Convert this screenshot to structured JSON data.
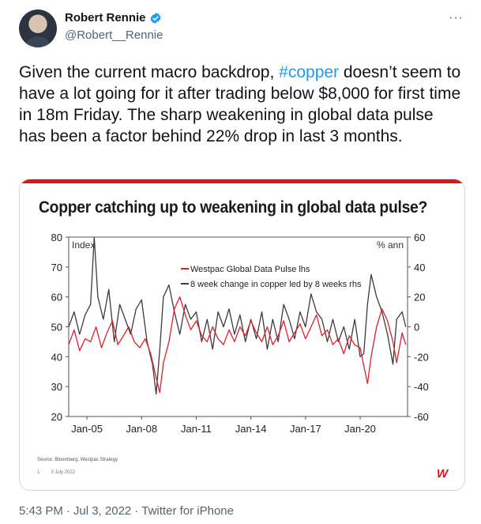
{
  "author": {
    "display_name": "Robert Rennie",
    "handle": "@Robert__Rennie",
    "verified": true
  },
  "more_label": "···",
  "tweet": {
    "text_part1": "Given the current macro backdrop, ",
    "hashtag": "#copper",
    "text_part2": " doesn’t seem to have a lot going for it after trading below $8,000 for first time in 18m Friday. The sharp weakening in global data pulse has been a factor behind 22% drop in last 3 months."
  },
  "meta": {
    "time": "5:43 PM",
    "date": "Jul 3, 2022",
    "source": "Twitter for iPhone",
    "separator": "·"
  },
  "card": {
    "source_note": "Source: Bloomberg, Westpac Strategy",
    "page_note": "1",
    "date_note": "3 July 2022",
    "logo": "W"
  },
  "colors": {
    "accent_red": "#da1710",
    "series_red": "#e0202a",
    "series_dark": "#3c3c3c",
    "link_blue": "#1d9bf0"
  },
  "chart_data": {
    "type": "line",
    "title": "Copper catching up to weakening in global data pulse?",
    "left_axis_label": "Index",
    "right_axis_label": "% ann",
    "left_ylim": [
      20,
      80
    ],
    "right_ylim": [
      -60,
      60
    ],
    "left_ticks": [
      "80",
      "70",
      "60",
      "50",
      "40",
      "30",
      "20"
    ],
    "right_ticks": [
      "60",
      "40",
      "20",
      "0",
      "-20",
      "-40",
      "-60"
    ],
    "x_ticks": [
      "Jan-05",
      "Jan-08",
      "Jan-11",
      "Jan-14",
      "Jan-17",
      "Jan-20"
    ],
    "legend_position": "top-center",
    "series": [
      {
        "name": "Westpac Global Data Pulse lhs",
        "axis": "left",
        "x": [
          2004.0,
          2004.3,
          2004.6,
          2004.9,
          2005.2,
          2005.5,
          2005.8,
          2006.1,
          2006.4,
          2006.7,
          2007.0,
          2007.3,
          2007.6,
          2007.9,
          2008.2,
          2008.5,
          2008.8,
          2009.0,
          2009.2,
          2009.5,
          2009.8,
          2010.1,
          2010.4,
          2010.7,
          2011.0,
          2011.3,
          2011.6,
          2011.9,
          2012.2,
          2012.5,
          2012.8,
          2013.1,
          2013.4,
          2013.7,
          2014.0,
          2014.3,
          2014.6,
          2014.9,
          2015.2,
          2015.5,
          2015.8,
          2016.1,
          2016.4,
          2016.7,
          2017.0,
          2017.3,
          2017.6,
          2017.9,
          2018.2,
          2018.5,
          2018.8,
          2019.1,
          2019.4,
          2019.7,
          2020.0,
          2020.2,
          2020.4,
          2020.6,
          2020.9,
          2021.2,
          2021.5,
          2021.8,
          2022.0,
          2022.3,
          2022.5
        ],
        "y": [
          44,
          49,
          42,
          46,
          45,
          50,
          43,
          48,
          52,
          44,
          47,
          50,
          45,
          43,
          46,
          41,
          33,
          28,
          38,
          45,
          56,
          60,
          54,
          49,
          52,
          47,
          45,
          50,
          46,
          44,
          49,
          45,
          50,
          47,
          52,
          48,
          45,
          50,
          44,
          47,
          52,
          45,
          48,
          51,
          46,
          50,
          54,
          47,
          49,
          44,
          46,
          41,
          47,
          44,
          43,
          37,
          31,
          40,
          50,
          56,
          52,
          45,
          38,
          48,
          44
        ]
      },
      {
        "name": "8 week change in copper led by 8 weeks rhs",
        "axis": "right",
        "x": [
          2004.0,
          2004.3,
          2004.6,
          2004.9,
          2005.2,
          2005.4,
          2005.6,
          2005.9,
          2006.2,
          2006.5,
          2006.8,
          2007.1,
          2007.4,
          2007.7,
          2008.0,
          2008.3,
          2008.6,
          2008.8,
          2009.0,
          2009.2,
          2009.5,
          2009.8,
          2010.1,
          2010.4,
          2010.7,
          2011.0,
          2011.3,
          2011.6,
          2011.9,
          2012.2,
          2012.5,
          2012.8,
          2013.1,
          2013.4,
          2013.7,
          2014.0,
          2014.3,
          2014.6,
          2014.9,
          2015.2,
          2015.5,
          2015.8,
          2016.1,
          2016.4,
          2016.7,
          2017.0,
          2017.3,
          2017.6,
          2017.9,
          2018.2,
          2018.5,
          2018.8,
          2019.1,
          2019.4,
          2019.7,
          2020.0,
          2020.2,
          2020.4,
          2020.6,
          2020.9,
          2021.2,
          2021.5,
          2021.8,
          2022.0,
          2022.3,
          2022.5
        ],
        "y": [
          0,
          10,
          -5,
          8,
          15,
          60,
          20,
          5,
          25,
          -10,
          15,
          5,
          -5,
          12,
          18,
          -10,
          -25,
          -45,
          -15,
          20,
          28,
          10,
          -5,
          15,
          5,
          10,
          -10,
          5,
          -15,
          10,
          0,
          12,
          -5,
          8,
          -10,
          5,
          -8,
          10,
          -15,
          5,
          -10,
          15,
          5,
          -8,
          10,
          0,
          22,
          10,
          5,
          -10,
          5,
          -10,
          0,
          -15,
          5,
          -20,
          -18,
          15,
          35,
          20,
          10,
          -5,
          -25,
          5,
          10,
          0
        ]
      }
    ]
  }
}
